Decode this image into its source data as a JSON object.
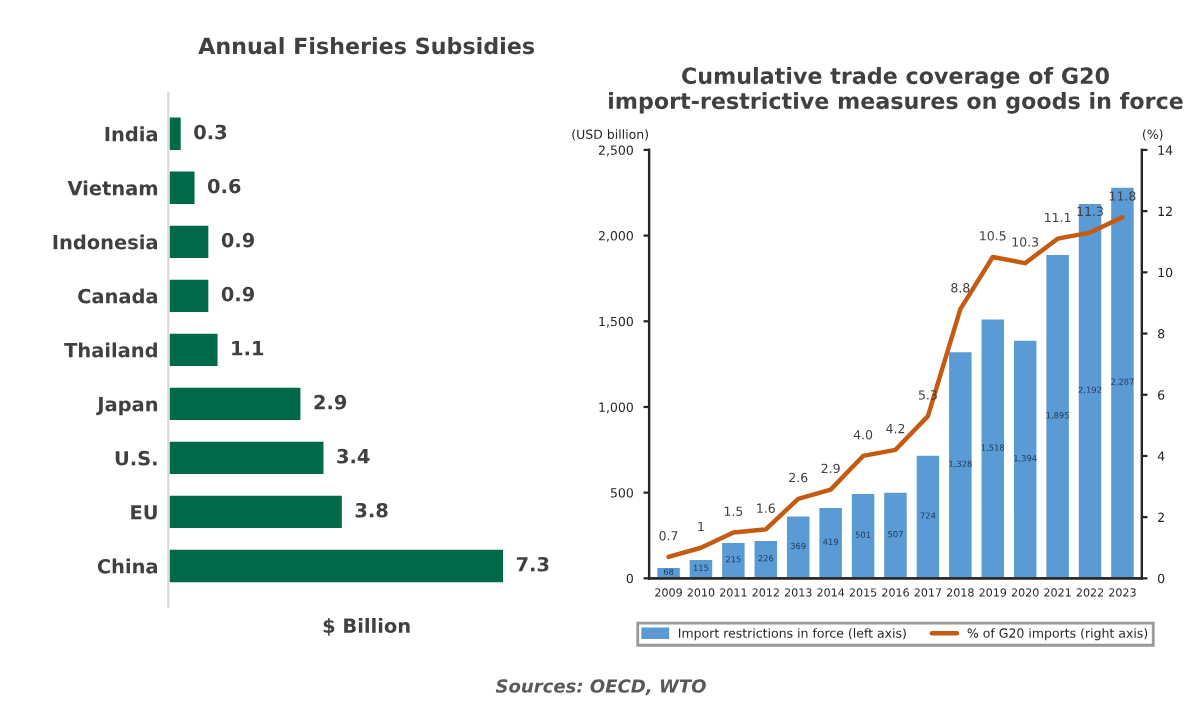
{
  "chart_data": [
    {
      "type": "bar",
      "orientation": "horizontal",
      "title": "Annual Fisheries Subsidies",
      "xlabel": "$ Billion",
      "categories": [
        "India",
        "Vietnam",
        "Indonesia",
        "Canada",
        "Thailand",
        "Japan",
        "U.S.",
        "EU",
        "China"
      ],
      "values": [
        0.3,
        0.6,
        0.9,
        0.9,
        1.1,
        2.9,
        3.4,
        3.8,
        7.3
      ],
      "color": "#00694a",
      "data_labels": true,
      "tick_labels": "y",
      "grid": false
    },
    {
      "type": "bar",
      "title": "Cumulative trade coverage of G20 import-restrictive measures on goods in force",
      "ylabel": "(USD billion)",
      "y2label": "(%)",
      "categories": [
        "2009",
        "2010",
        "2011",
        "2012",
        "2013",
        "2014",
        "2015",
        "2016",
        "2017",
        "2018",
        "2019",
        "2020",
        "2021",
        "2022",
        "2023"
      ],
      "series": [
        {
          "name": "Import restrictions in force (left axis)",
          "type": "bar",
          "color": "#5b9bd5",
          "values": [
            68,
            115,
            215,
            226,
            369,
            419,
            501,
            507,
            724,
            1328,
            1518,
            1394,
            1895,
            2192,
            2287
          ],
          "value_labels": [
            "68",
            "115",
            "215",
            "226",
            "369",
            "419",
            "501",
            "507",
            "724",
            "1,328",
            "1,518",
            "1,394",
            "1,895",
            "2,192",
            "2,287"
          ]
        },
        {
          "name": "% of G20 imports (right axis)",
          "type": "line",
          "axis": "y2",
          "color": "#c55a11",
          "values": [
            0.7,
            1,
            1.5,
            1.6,
            2.6,
            2.9,
            4.0,
            4.2,
            5.3,
            8.8,
            10.5,
            10.3,
            11.1,
            11.3,
            11.8
          ],
          "value_labels": [
            "0.7",
            "1",
            "1.5",
            "1.6",
            "2.6",
            "2.9",
            "4.0",
            "4.2",
            "5.3",
            "8.8",
            "10.5",
            "10.3",
            "11.1",
            "11.3",
            "11.8"
          ]
        }
      ],
      "ylim": [
        0,
        2500
      ],
      "yticks": [
        0,
        500,
        {
          "value": 1000,
          "label": "1,000"
        },
        {
          "value": 1500,
          "label": "1,500"
        },
        {
          "value": 2000,
          "label": "2,000"
        },
        {
          "value": 2500,
          "label": "2,500"
        }
      ],
      "y2lim": [
        0,
        14
      ],
      "y2ticks": [
        0,
        2,
        4,
        6,
        8,
        10,
        12,
        14
      ],
      "grid": false,
      "legend": "bottom",
      "marker": "none",
      "line_style": "solid",
      "annotations": [
        "Sources: OECD, WTO"
      ]
    }
  ]
}
